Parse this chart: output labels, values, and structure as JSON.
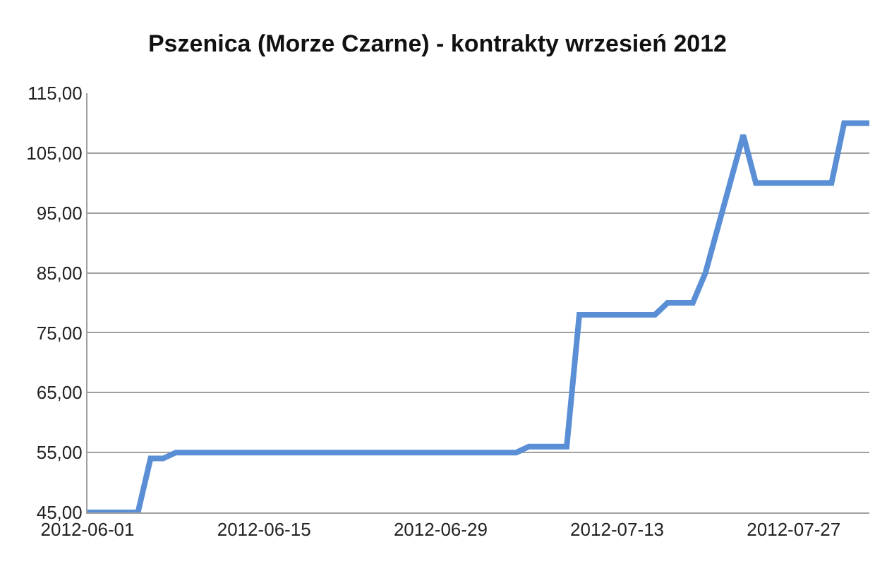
{
  "chart_data": {
    "type": "line",
    "title": "Pszenica (Morze Czarne) - kontrakty wrzesień 2012",
    "x": [
      "2012-06-01",
      "2012-06-05",
      "2012-06-06",
      "2012-06-07",
      "2012-06-08",
      "2012-07-05",
      "2012-07-06",
      "2012-07-09",
      "2012-07-10",
      "2012-07-16",
      "2012-07-17",
      "2012-07-19",
      "2012-07-20",
      "2012-07-23",
      "2012-07-24",
      "2012-07-30",
      "2012-07-31",
      "2012-08-02"
    ],
    "series": [
      {
        "color": "#5a8fd6",
        "values": [
          45,
          45,
          54,
          54,
          55,
          55,
          56,
          56,
          78,
          78,
          80,
          80,
          85,
          108,
          100,
          100,
          110,
          110
        ]
      }
    ],
    "xlim": [
      "2012-06-01",
      "2012-08-02"
    ],
    "xticks": [
      "2012-06-01",
      "2012-06-15",
      "2012-06-29",
      "2012-07-13",
      "2012-07-27"
    ],
    "ylim": [
      45,
      115
    ],
    "yticks": [
      {
        "value": 45,
        "label": "45,00"
      },
      {
        "value": 55,
        "label": "55,00"
      },
      {
        "value": 65,
        "label": "65,00"
      },
      {
        "value": 75,
        "label": "75,00"
      },
      {
        "value": 85,
        "label": "85,00"
      },
      {
        "value": 95,
        "label": "95,00"
      },
      {
        "value": 105,
        "label": "105,00"
      },
      {
        "value": 115,
        "label": "115,00"
      }
    ],
    "grid": "y",
    "marker": "none",
    "line_style": "solid"
  }
}
